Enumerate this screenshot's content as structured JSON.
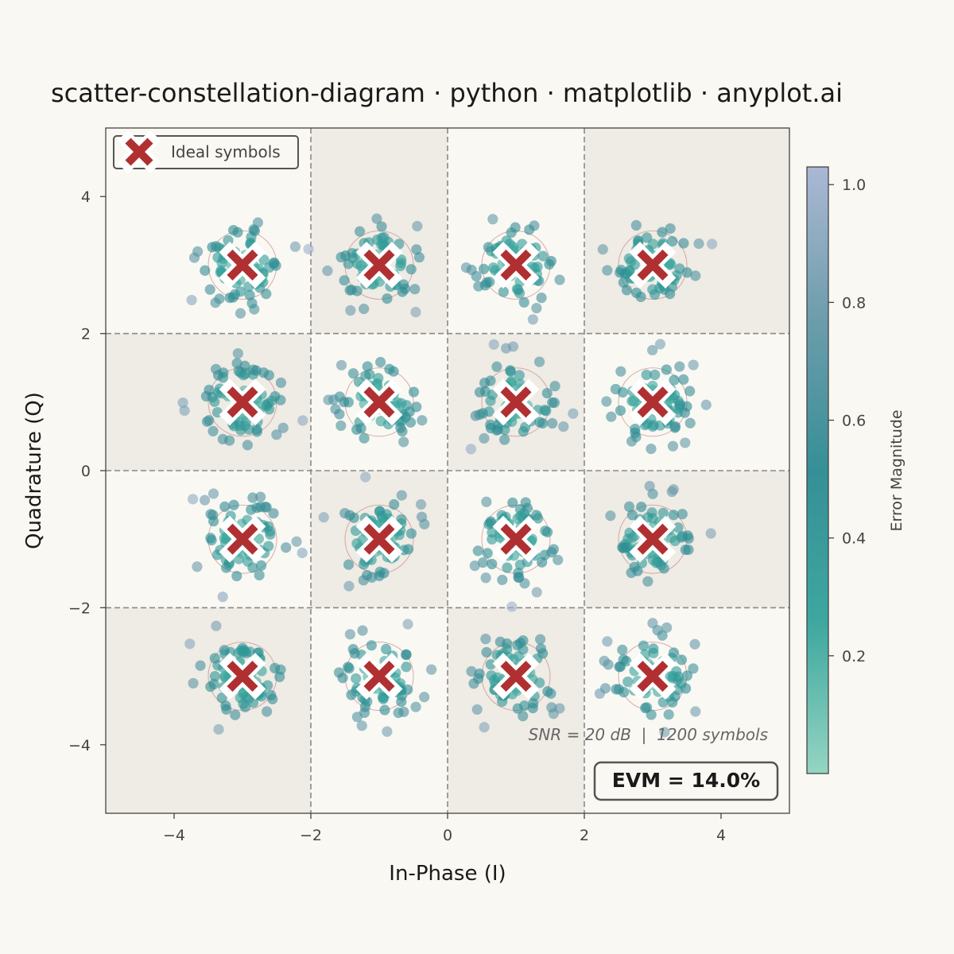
{
  "chart_data": {
    "type": "scatter",
    "title": "scatter-constellation-diagram · python · matplotlib · anyplot.ai",
    "xlabel": "In-Phase (I)",
    "ylabel": "Quadrature (Q)",
    "xlim": [
      -5,
      5
    ],
    "ylim": [
      -5,
      5
    ],
    "x_ticks": [
      -4,
      -2,
      0,
      2,
      4
    ],
    "y_ticks": [
      -4,
      -2,
      0,
      2,
      4
    ],
    "x_tick_labels": [
      "−4",
      "−2",
      "0",
      "2",
      "4"
    ],
    "y_tick_labels": [
      "−4",
      "−2",
      "0",
      "2",
      "4"
    ],
    "grid": "dashed decision boundaries at -2, 0, 2",
    "ideal_symbols": {
      "name": "Ideal symbols",
      "marker": "x",
      "color": "#B03032",
      "levels": [
        -3,
        -1,
        1,
        3
      ]
    },
    "received_symbols": {
      "count": 1200,
      "noise_sigma": 0.3,
      "color_by": "error magnitude",
      "colormap": [
        "#8FD3C0",
        "#34A39B",
        "#2C8A92",
        "#6698A8",
        "#A6B5D3"
      ]
    },
    "colorbar": {
      "label": "Error Magnitude",
      "range": [
        0.0,
        1.03
      ],
      "ticks": [
        0.2,
        0.4,
        0.6,
        0.8,
        1.0
      ],
      "tick_labels": [
        "0.2",
        "0.4",
        "0.6",
        "0.8",
        "1.0"
      ]
    },
    "legend": {
      "label": "Ideal symbols",
      "position": "top-left"
    },
    "annotations": {
      "snr": "SNR = 20 dB  |  1200 symbols",
      "evm": "EVM = 14.0%"
    },
    "colors": {
      "background": "#FAF8F3",
      "region_shade": "#EFEBE5",
      "ideal_marker": "#B03032",
      "text": "#1A1A1A"
    }
  }
}
